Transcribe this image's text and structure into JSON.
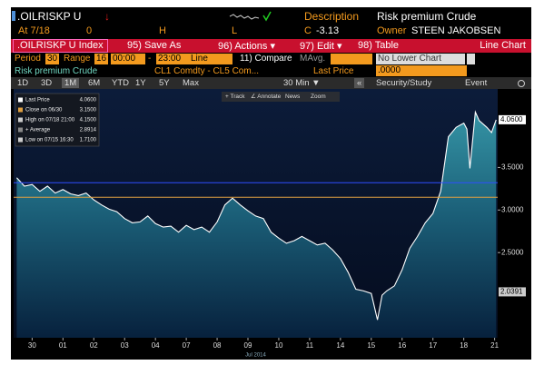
{
  "header": {
    "ticker": ".OILRISKP U",
    "arrow": "↓",
    "description_label": "Description",
    "description": "Risk premium Crude",
    "at_label": "At 7/18",
    "open": "0",
    "high_label": "H",
    "low_label": "L",
    "change_label": "C",
    "change": "-3.13",
    "owner_label": "Owner",
    "owner": "STEEN JAKOBSEN"
  },
  "menu": {
    "security": ".OILRISKP U Index",
    "save": "95) Save As",
    "actions": "96) Actions ▾",
    "edit": "97) Edit ▾",
    "table": "98) Table",
    "view": "Line Chart"
  },
  "settings": {
    "period_label": "Period",
    "period": "30",
    "range_label": "Range",
    "range": "16",
    "start": "00:00",
    "dash": "-",
    "end": "23:00",
    "style": "Line",
    "compare": "11) Compare",
    "mavg": "MAvg.",
    "lower": "No Lower Chart"
  },
  "security_row": {
    "name": "Risk premium Crude",
    "formula": "CL1 Comdty - CL5 Com...",
    "last_price_label": "Last Price",
    "last_price": ".0000"
  },
  "toolbar": {
    "periods": [
      "1D",
      "3D",
      "1M",
      "6M",
      "YTD",
      "1Y",
      "5Y",
      "Max"
    ],
    "selected": 2,
    "interval": "30 Min ▼",
    "collapse": "«",
    "study": "Security/Study",
    "event": "Event"
  },
  "chart_tools": [
    "+ Track",
    "∠ Annotate",
    "News",
    "Zoom"
  ],
  "chart_data": {
    "type": "area",
    "x": [
      0,
      0.25,
      0.5,
      0.75,
      1,
      1.25,
      1.5,
      1.75,
      2,
      2.25,
      2.5,
      2.75,
      3,
      3.25,
      3.5,
      3.75,
      4,
      4.25,
      4.5,
      4.75,
      5,
      5.25,
      5.5,
      5.75,
      6,
      6.25,
      6.5,
      6.75,
      7,
      7.25,
      7.5,
      7.75,
      8,
      8.25,
      8.5,
      8.75,
      9,
      9.25,
      9.5,
      9.75,
      10,
      10.25,
      10.5,
      10.75,
      11,
      11.25,
      11.5,
      11.7,
      11.85,
      12,
      12.25,
      12.5,
      12.75,
      13,
      13.25,
      13.5,
      13.75,
      14,
      14.25,
      14.5,
      14.6,
      14.7,
      14.875,
      15,
      15.25,
      15.4,
      15.55
    ],
    "series": [
      {
        "color": "#ffffff",
        "values": [
          3.38,
          3.28,
          3.3,
          3.22,
          3.28,
          3.2,
          3.24,
          3.19,
          3.17,
          3.2,
          3.12,
          3.06,
          3.01,
          2.98,
          2.9,
          2.85,
          2.86,
          2.93,
          2.84,
          2.8,
          2.81,
          2.74,
          2.82,
          2.77,
          2.8,
          2.74,
          2.86,
          3.06,
          3.14,
          3.06,
          2.99,
          2.93,
          2.9,
          2.74,
          2.67,
          2.61,
          2.64,
          2.69,
          2.64,
          2.59,
          2.61,
          2.53,
          2.43,
          2.27,
          2.07,
          2.05,
          2.02,
          1.71,
          2.0,
          2.05,
          2.11,
          2.3,
          2.55,
          2.69,
          2.85,
          2.96,
          3.22,
          3.86,
          3.97,
          4.02,
          3.95,
          3.49,
          4.15,
          4.05,
          3.97,
          3.91,
          4.06
        ]
      }
    ],
    "xlim": [
      -0.1,
      15.6
    ],
    "xticks": [
      {
        "value": 0.5,
        "label": "30"
      },
      {
        "value": 1.5,
        "label": "01"
      },
      {
        "value": 2.5,
        "label": "02"
      },
      {
        "value": 3.5,
        "label": "03"
      },
      {
        "value": 4.5,
        "label": "04"
      },
      {
        "value": 5.5,
        "label": "07"
      },
      {
        "value": 6.5,
        "label": "08"
      },
      {
        "value": 7.5,
        "label": "09"
      },
      {
        "value": 8.5,
        "label": "10"
      },
      {
        "value": 9.5,
        "label": "11"
      },
      {
        "value": 10.5,
        "label": "14"
      },
      {
        "value": 11.5,
        "label": "15"
      },
      {
        "value": 12.5,
        "label": "16"
      },
      {
        "value": 13.5,
        "label": "17"
      },
      {
        "value": 14.5,
        "label": "18"
      },
      {
        "value": 15.5,
        "label": "21"
      }
    ],
    "x_label": "Jul 2014",
    "ylim": [
      1.5,
      4.4
    ],
    "yticks": [
      {
        "value": 2.5,
        "label": "2.5000"
      },
      {
        "value": 3,
        "label": "3.0000"
      },
      {
        "value": 3.5,
        "label": "3.5000"
      }
    ],
    "axis_markers": [
      {
        "value": 4.06,
        "label": "4.0600"
      },
      {
        "value": 2.0391,
        "label": "2.0391"
      }
    ],
    "hlines": [
      {
        "value": 3.32,
        "color": "#2f4dff"
      },
      {
        "value": 3.15,
        "color": "#e0a040"
      }
    ],
    "legend": [
      {
        "label": "Last Price",
        "value": "4.0600",
        "color": "#ffffff"
      },
      {
        "label": "Close on 06/30",
        "value": "3.1500",
        "color": "#e0a040"
      },
      {
        "label": "High on 07/18 21:00",
        "value": "4.1500",
        "color": "#cccccc"
      },
      {
        "label": "+ Average",
        "value": "2.8914",
        "color": "#888888"
      },
      {
        "label": "Low on 07/15 16:30",
        "value": "1.7100",
        "color": "#cccccc"
      }
    ]
  }
}
